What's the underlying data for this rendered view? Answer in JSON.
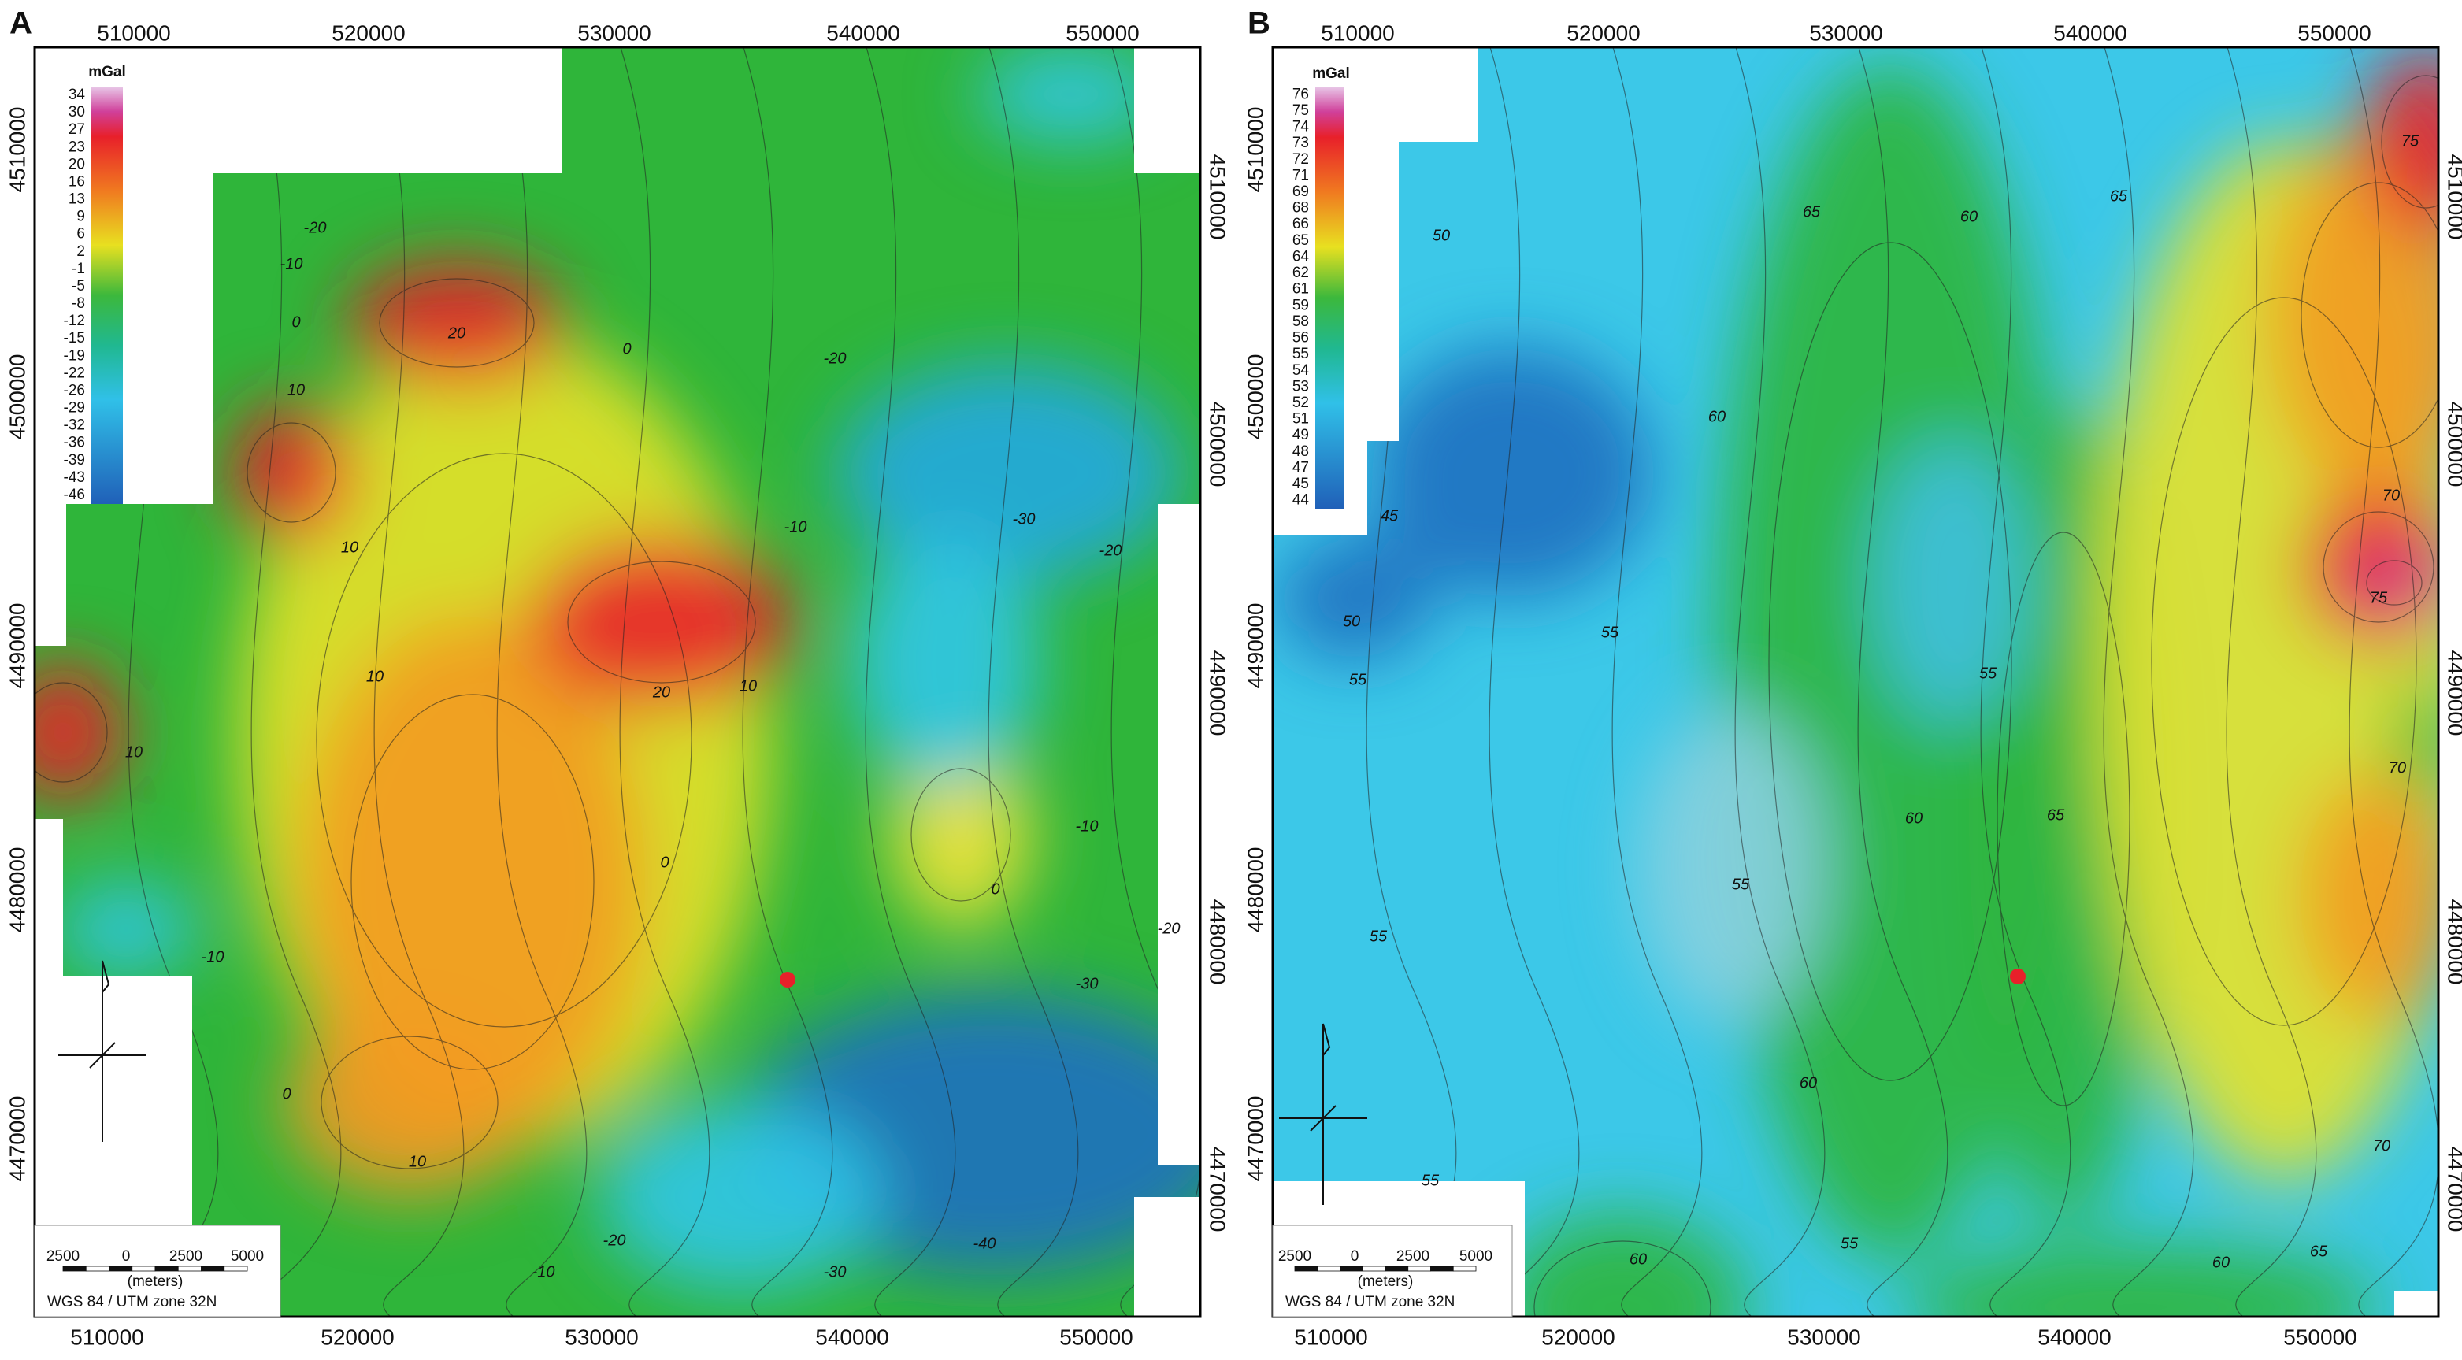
{
  "panels": [
    {
      "label": "A",
      "x_ticks_top": [
        510000,
        520000,
        530000,
        540000,
        550000
      ],
      "x_ticks_bottom": [
        510000,
        520000,
        530000,
        540000,
        550000
      ],
      "y_ticks_left": [
        4510000,
        4500000,
        4490000,
        4480000,
        4470000
      ],
      "y_ticks_right": [
        4510000,
        4500000,
        4490000,
        4480000,
        4470000
      ],
      "legend": {
        "unit": "mGal",
        "labels": [
          "34",
          "30",
          "27",
          "23",
          "20",
          "16",
          "13",
          "9",
          "6",
          "2",
          "-1",
          "-5",
          "-8",
          "-12",
          "-15",
          "-19",
          "-22",
          "-26",
          "-29",
          "-32",
          "-36",
          "-39",
          "-43",
          "-46"
        ]
      },
      "contour_labels": [
        "-20",
        "-10",
        "0",
        "20",
        "10",
        "10",
        "10",
        "0",
        "-20",
        "-10",
        "-30",
        "-20",
        "20",
        "10",
        "10",
        "0",
        "-10",
        "-10",
        "0",
        "-20",
        "-30",
        "0",
        "10",
        "-10",
        "-20",
        "-30",
        "-40"
      ],
      "scale_bar": {
        "ticks": [
          "2500",
          "0",
          "2500",
          "5000"
        ],
        "unit": "(meters)"
      },
      "projection": "WGS 84 / UTM zone 32N"
    },
    {
      "label": "B",
      "x_ticks_top": [
        510000,
        520000,
        530000,
        540000,
        550000
      ],
      "x_ticks_bottom": [
        510000,
        520000,
        530000,
        540000,
        550000
      ],
      "y_ticks_left": [
        4510000,
        4500000,
        4490000,
        4480000,
        4470000
      ],
      "y_ticks_right": [
        4510000,
        4500000,
        4490000,
        4480000,
        4470000
      ],
      "legend": {
        "unit": "mGal",
        "labels": [
          "76",
          "75",
          "74",
          "73",
          "72",
          "71",
          "69",
          "68",
          "66",
          "65",
          "64",
          "62",
          "61",
          "59",
          "58",
          "56",
          "55",
          "54",
          "53",
          "52",
          "51",
          "49",
          "48",
          "47",
          "45",
          "44"
        ]
      },
      "contour_labels": [
        "50",
        "45",
        "50",
        "55",
        "55",
        "60",
        "65",
        "60",
        "65",
        "55",
        "70",
        "75",
        "70",
        "60",
        "65",
        "55",
        "55",
        "60",
        "55",
        "70",
        "60",
        "65",
        "55",
        "60",
        "75"
      ],
      "scale_bar": {
        "ticks": [
          "2500",
          "0",
          "2500",
          "5000"
        ],
        "unit": "(meters)"
      },
      "projection": "WGS 84 / UTM zone 32N"
    }
  ]
}
